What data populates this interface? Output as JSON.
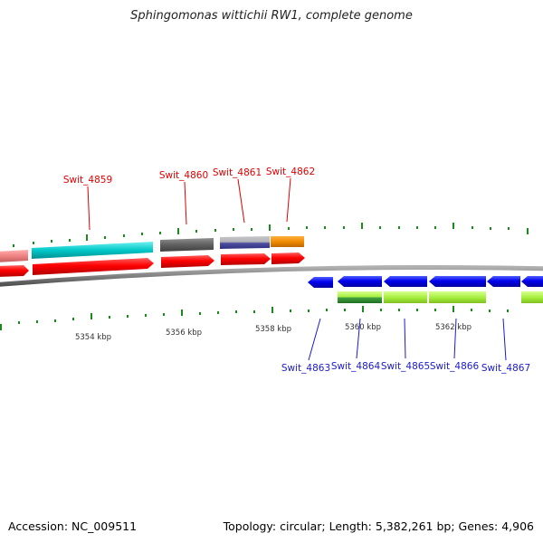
{
  "title": "Sphingomonas wittichii RW1, complete genome",
  "footer": {
    "accession": "Accession: NC_009511",
    "summary": "Topology: circular; Length: 5,382,261 bp; Genes: 4,906"
  },
  "colors": {
    "forward_label": "#e00000",
    "reverse_label": "#1a1ad0",
    "tick": "#1a8a1a",
    "backbone": "#808080"
  },
  "ruler_labels": [
    "5354 kbp",
    "5356 kbp",
    "5358 kbp",
    "5360 kbp",
    "5362 kbp"
  ],
  "forward_genes": [
    {
      "label": "Swit_4859",
      "cds_color": "#00c8c8"
    },
    {
      "label": "Swit_4860",
      "cds_color": "#606060"
    },
    {
      "label": "Swit_4861",
      "cds_color": "#4a4aa0"
    },
    {
      "label": "Swit_4862",
      "cds_color": "#f08c00"
    }
  ],
  "reverse_genes": [
    {
      "label": "Swit_4863"
    },
    {
      "label": "Swit_4864"
    },
    {
      "label": "Swit_4865"
    },
    {
      "label": "Swit_4866"
    },
    {
      "label": "Swit_4867"
    }
  ]
}
